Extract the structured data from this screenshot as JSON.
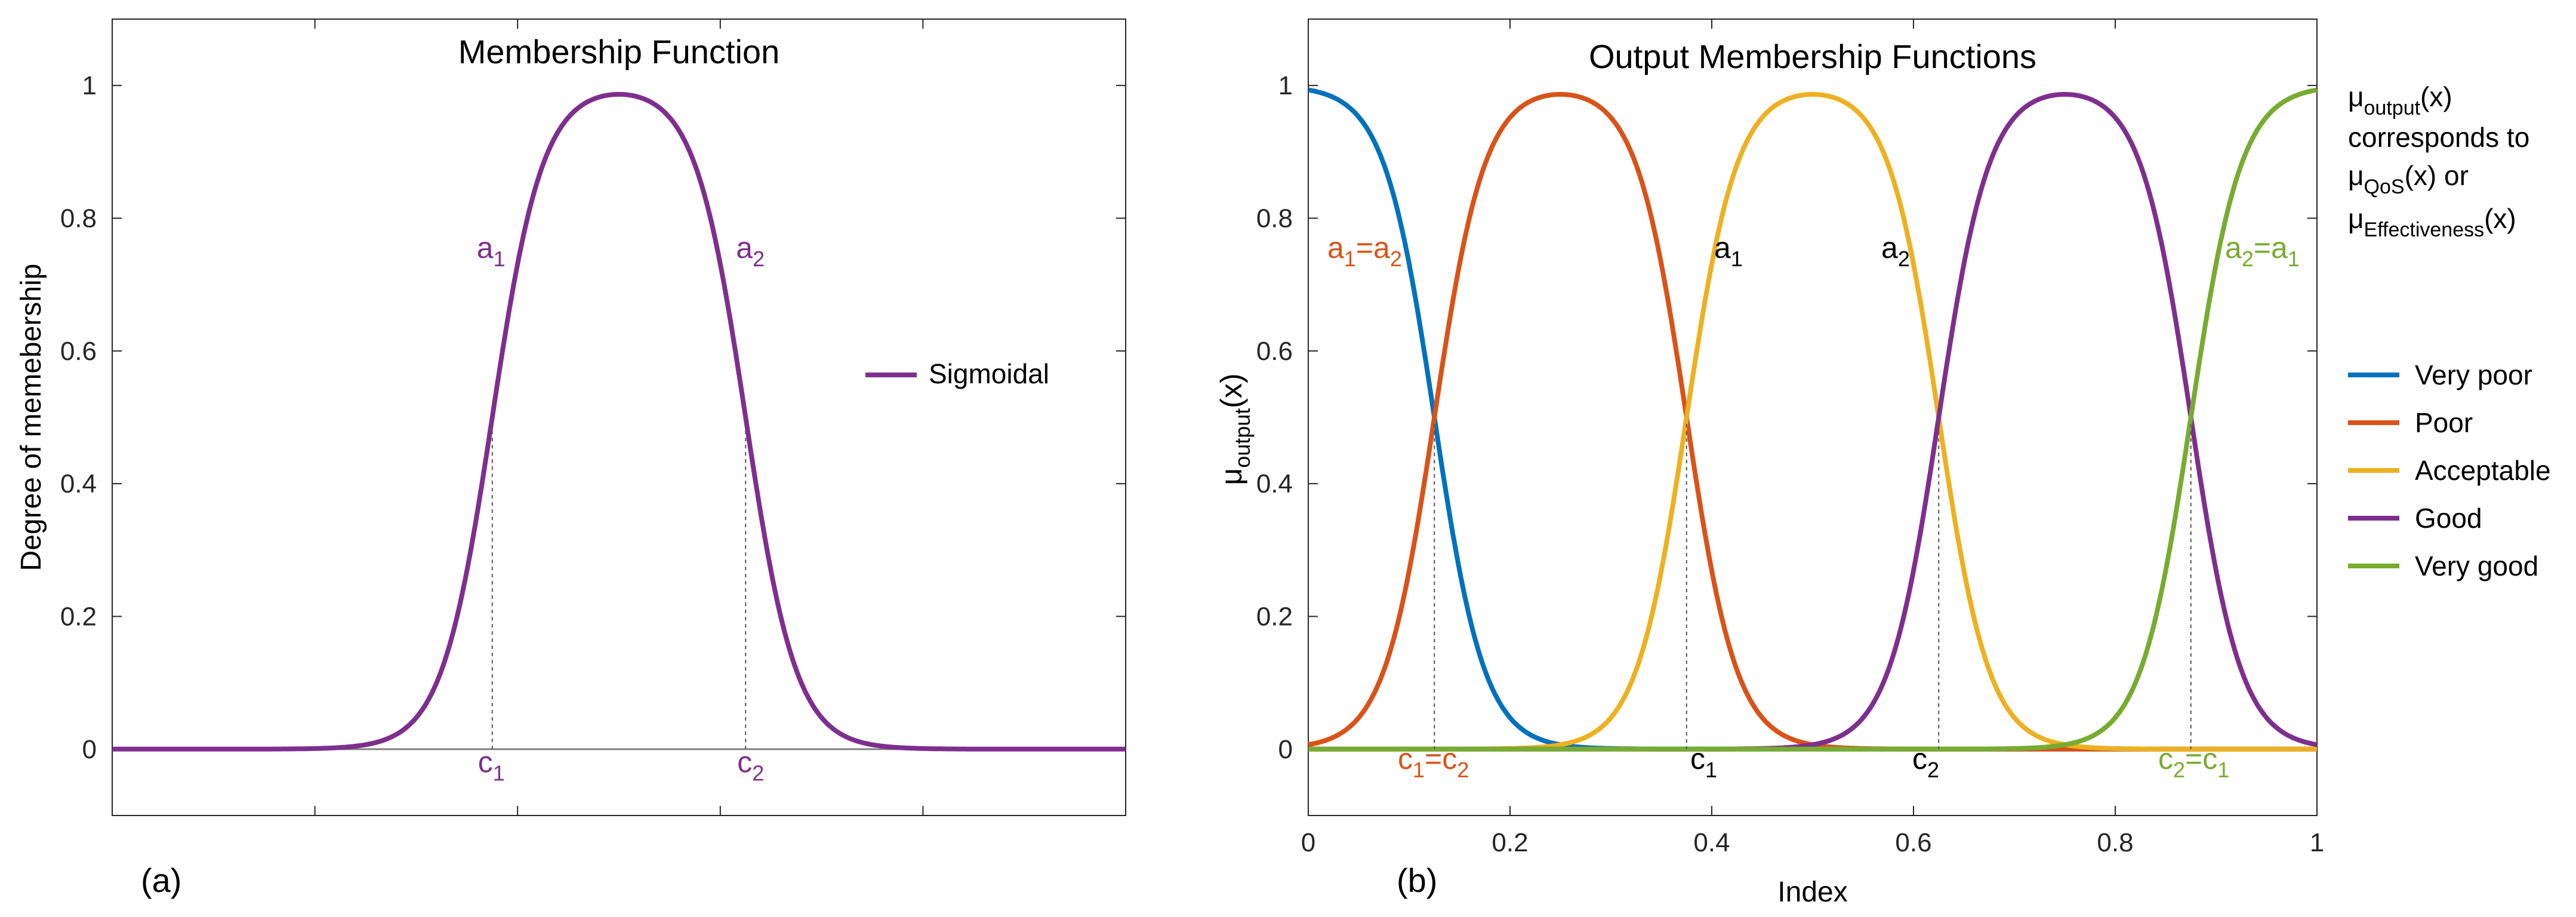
{
  "chart_data": [
    {
      "type": "line",
      "panel_label": "(a)",
      "title": "Membership Function",
      "xlabel": "",
      "ylabel": "Degree of memebership",
      "xlim": [
        0,
        1
      ],
      "ylim": [
        -0.1,
        1.1
      ],
      "yticks": [
        "0",
        "0.2",
        "0.4",
        "0.6",
        "0.8",
        "1"
      ],
      "ytick_values": [
        0,
        0.2,
        0.4,
        0.6,
        0.8,
        1
      ],
      "x_minor_ticks": [
        0.2,
        0.4,
        0.6,
        0.8
      ],
      "grid": false,
      "legend_position": "center-right",
      "series": [
        {
          "name": "Sigmoidal",
          "color": "#7E2F8E",
          "a": 40,
          "c1": 0.375,
          "c2": 0.625
        }
      ],
      "markers": [
        {
          "x": 0.375,
          "color": "#7E2F8E",
          "top_label": "a",
          "top_sub": "1",
          "bottom_label": "c",
          "bottom_sub": "1"
        },
        {
          "x": 0.625,
          "color": "#7E2F8E",
          "top_label": "a",
          "top_sub": "2",
          "bottom_label": "c",
          "bottom_sub": "2"
        }
      ]
    },
    {
      "type": "line",
      "panel_label": "(b)",
      "title": "Output Membership Functions",
      "xlabel": "Index",
      "ylabel": "μ",
      "ylabel_sub": "output",
      "ylabel_tail": "(x)",
      "xlim": [
        0,
        1
      ],
      "ylim": [
        -0.1,
        1.1
      ],
      "xticks": [
        "0",
        "0.2",
        "0.4",
        "0.6",
        "0.8",
        "1"
      ],
      "xtick_values": [
        0,
        0.2,
        0.4,
        0.6,
        0.8,
        1
      ],
      "yticks": [
        "0",
        "0.2",
        "0.4",
        "0.6",
        "0.8",
        "1"
      ],
      "ytick_values": [
        0,
        0.2,
        0.4,
        0.6,
        0.8,
        1
      ],
      "grid": false,
      "legend_position": "outside-right",
      "series": [
        {
          "name": "Very poor",
          "color": "#0072BD",
          "shape": "zmf",
          "c2": 0.125,
          "a": 40
        },
        {
          "name": "Poor",
          "color": "#D95319",
          "shape": "bell",
          "c1": 0.125,
          "c2": 0.375,
          "a": 40
        },
        {
          "name": "Acceptable",
          "color": "#EDB120",
          "shape": "bell",
          "c1": 0.375,
          "c2": 0.625,
          "a": 40
        },
        {
          "name": "Good",
          "color": "#7E2F8E",
          "shape": "bell",
          "c1": 0.625,
          "c2": 0.875,
          "a": 40
        },
        {
          "name": "Very good",
          "color": "#77AC30",
          "shape": "smf",
          "c1": 0.875,
          "a": 40
        }
      ],
      "markers": [
        {
          "x": 0.125,
          "top_color": "#D95319",
          "bottom_color": "#D95319",
          "top_parts": [
            "a",
            "1",
            "=a",
            "2"
          ],
          "bottom_parts": [
            "c",
            "1",
            "=c",
            "2"
          ]
        },
        {
          "x": 0.375,
          "top_color": "#000000",
          "bottom_color": "#000000",
          "top_parts": [
            "a",
            "1"
          ],
          "bottom_parts": [
            "c",
            "1"
          ]
        },
        {
          "x": 0.625,
          "top_color": "#000000",
          "bottom_color": "#000000",
          "top_parts": [
            "a",
            "2"
          ],
          "bottom_parts": [
            "c",
            "2"
          ]
        },
        {
          "x": 0.875,
          "top_color": "#77AC30",
          "bottom_color": "#77AC30",
          "top_parts": [
            "a",
            "2",
            "=a",
            "1"
          ],
          "bottom_parts": [
            "c",
            "2",
            "=c",
            "1"
          ]
        }
      ],
      "note": {
        "line1": [
          "μ",
          "output",
          "(x)"
        ],
        "line2": "corresponds to",
        "line3": [
          "μ",
          "QoS",
          "(x) or"
        ],
        "line4": [
          "μ",
          "Effectiveness",
          "(x)"
        ]
      }
    }
  ]
}
